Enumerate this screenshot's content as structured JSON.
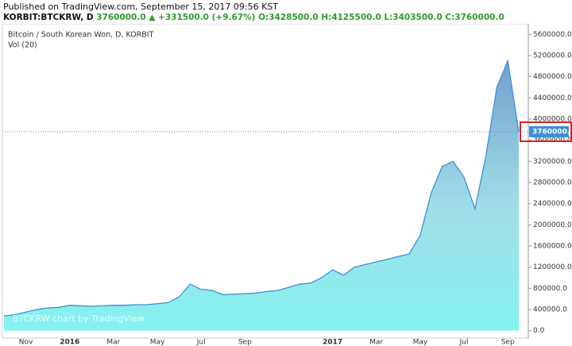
{
  "header": {
    "published": "Published on TradingView.com, September 15, 2017 09:56 KST",
    "symbol": "KORBIT:BTCKRW, D",
    "last": "3760000.0",
    "arrow": "▲",
    "change": "+331500.0 (+9.67%)",
    "open": "O:3428500.0",
    "high": "H:4125500.0",
    "low": "L:3403500.0",
    "close": "C:3760000.0"
  },
  "chart_data": {
    "type": "area",
    "title": "Bitcoin / South Korean Won, D, KORBIT",
    "subtitle": "Vol (20)",
    "watermark": "BTCKRW chart by TradingView",
    "price_label": "3760000.0",
    "categories": [
      null,
      null,
      "Nov",
      null,
      null,
      null,
      "2016",
      null,
      null,
      null,
      "Mar",
      null,
      null,
      null,
      "May",
      null,
      null,
      null,
      "Jul",
      null,
      null,
      null,
      "Sep",
      null,
      null,
      null,
      null,
      null,
      null,
      null,
      "2017",
      null,
      null,
      null,
      "Mar",
      null,
      null,
      null,
      "May",
      null,
      null,
      null,
      "Jul",
      null,
      null,
      null,
      "Sep",
      null
    ],
    "series": [
      {
        "name": "BTCKRW",
        "color": "#3d8fd6",
        "values": [
          280000,
          300000,
          350000,
          400000,
          430000,
          440000,
          480000,
          470000,
          460000,
          470000,
          480000,
          480000,
          490000,
          490000,
          510000,
          530000,
          640000,
          880000,
          780000,
          760000,
          680000,
          690000,
          700000,
          710000,
          740000,
          760000,
          820000,
          880000,
          900000,
          1000000,
          1150000,
          1050000,
          1200000,
          1250000,
          1300000,
          1350000,
          1400000,
          1450000,
          1800000,
          2600000,
          3100000,
          3200000,
          2900000,
          2300000,
          3300000,
          4600000,
          5100000,
          3760000
        ]
      }
    ],
    "ylim": [
      -140000,
      5800000
    ],
    "yticks": [
      {
        "value": 0,
        "label": "0.0"
      },
      {
        "value": 400000,
        "label": "400000.0"
      },
      {
        "value": 800000,
        "label": "800000.0"
      },
      {
        "value": 1200000,
        "label": "1200000.0"
      },
      {
        "value": 1600000,
        "label": "1600000.0"
      },
      {
        "value": 2000000,
        "label": "2000000.0"
      },
      {
        "value": 2400000,
        "label": "2400000.0"
      },
      {
        "value": 2800000,
        "label": "2800000.0"
      },
      {
        "value": 3200000,
        "label": "3200000.0"
      },
      {
        "value": 3600000,
        "label": "3600000.0"
      },
      {
        "value": 4000000,
        "label": "4000000.0"
      },
      {
        "value": 4400000,
        "label": "4400000.0"
      },
      {
        "value": 4800000,
        "label": "4800000.0"
      },
      {
        "value": 5200000,
        "label": "5200000.0"
      },
      {
        "value": 5600000,
        "label": "5600000.0"
      }
    ],
    "grid": false
  }
}
